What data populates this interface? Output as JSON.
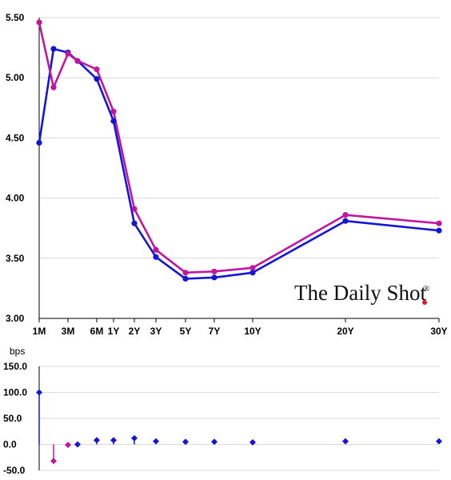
{
  "chart_data": [
    {
      "type": "line",
      "x_labels": [
        "1M",
        "3M",
        "6M",
        "1Y",
        "2Y",
        "3Y",
        "5Y",
        "7Y",
        "10Y",
        "20Y",
        "30Y"
      ],
      "x_positions_months": [
        1,
        3,
        6,
        12,
        24,
        36,
        60,
        84,
        120,
        240,
        360
      ],
      "ylim": [
        3.0,
        5.5
      ],
      "yticks": [
        "3.00",
        "3.50",
        "4.00",
        "4.50",
        "5.00",
        "5.50"
      ],
      "grid": true,
      "series": [
        {
          "color": "#1515d6",
          "points": [
            {
              "m": 1,
              "y": 4.46
            },
            {
              "m": 2,
              "y": 5.24
            },
            {
              "m": 3,
              "y": 5.21
            },
            {
              "m": 4,
              "y": 5.14
            },
            {
              "m": 6,
              "y": 4.99
            },
            {
              "m": 12,
              "y": 4.64
            },
            {
              "m": 24,
              "y": 3.79
            },
            {
              "m": 36,
              "y": 3.51
            },
            {
              "m": 60,
              "y": 3.33
            },
            {
              "m": 84,
              "y": 3.34
            },
            {
              "m": 120,
              "y": 3.38
            },
            {
              "m": 240,
              "y": 3.81
            },
            {
              "m": 360,
              "y": 3.73
            }
          ]
        },
        {
          "color": "#c0179e",
          "points": [
            {
              "m": 1,
              "y": 5.46
            },
            {
              "m": 2,
              "y": 4.92
            },
            {
              "m": 3,
              "y": 5.2
            },
            {
              "m": 4,
              "y": 5.14
            },
            {
              "m": 6,
              "y": 5.07
            },
            {
              "m": 12,
              "y": 4.72
            },
            {
              "m": 24,
              "y": 3.91
            },
            {
              "m": 36,
              "y": 3.57
            },
            {
              "m": 60,
              "y": 3.38
            },
            {
              "m": 84,
              "y": 3.39
            },
            {
              "m": 120,
              "y": 3.42
            },
            {
              "m": 240,
              "y": 3.86
            },
            {
              "m": 360,
              "y": 3.79
            }
          ]
        }
      ]
    },
    {
      "type": "bar",
      "unit_label": "bps",
      "ylim": [
        -50.0,
        150.0
      ],
      "yticks": [
        "-50.0",
        "0.0",
        "50.0",
        "100.0",
        "150.0"
      ],
      "grid": true,
      "positive_color": "#1515d6",
      "negative_color": "#c0179e",
      "points": [
        {
          "m": 1,
          "y": 100
        },
        {
          "m": 2,
          "y": -32
        },
        {
          "m": 3,
          "y": -1
        },
        {
          "m": 4,
          "y": 0
        },
        {
          "m": 6,
          "y": 8
        },
        {
          "m": 12,
          "y": 8
        },
        {
          "m": 24,
          "y": 12
        },
        {
          "m": 36,
          "y": 6
        },
        {
          "m": 60,
          "y": 5
        },
        {
          "m": 84,
          "y": 5
        },
        {
          "m": 120,
          "y": 4
        },
        {
          "m": 240,
          "y": 6
        },
        {
          "m": 360,
          "y": 6
        }
      ]
    }
  ],
  "branding": {
    "logo_text": "The Daily Shot",
    "logo_mark": "®",
    "dot_color": "#d8202a"
  }
}
